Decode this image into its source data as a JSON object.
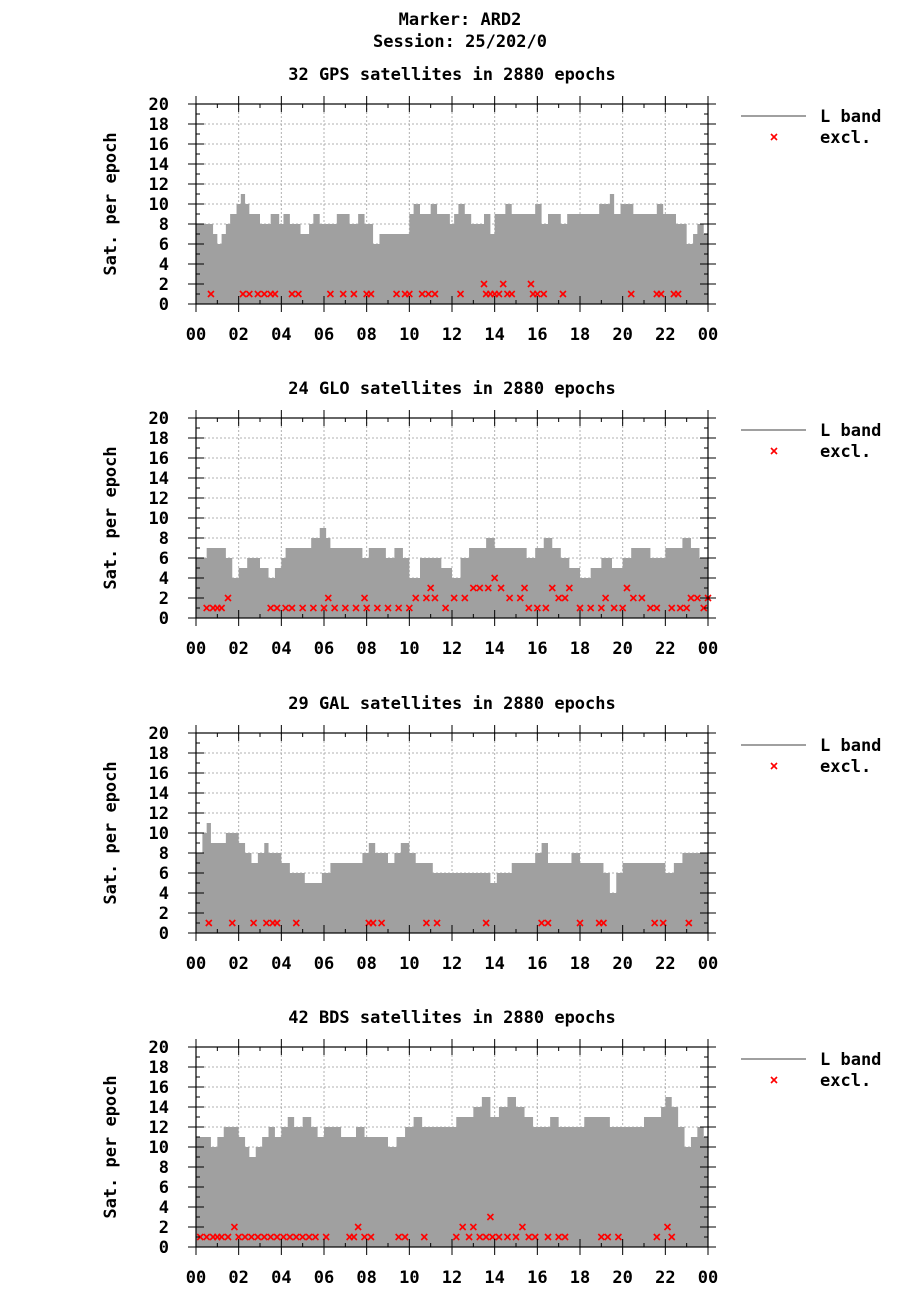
{
  "header": {
    "marker_line": "Marker: ARD2",
    "session_line": "Session: 25/202/0"
  },
  "legend": {
    "band_label": "L band",
    "excl_label": "excl."
  },
  "colors": {
    "band": "#a0a0a0",
    "excl": "#ff0000",
    "grid": "#b0b0b0"
  },
  "chart_data": [
    {
      "type": "area",
      "title": "32 GPS satellites in 2880 epochs",
      "ylabel": "Sat. per epoch",
      "xlabel": "",
      "ylim": [
        0,
        20
      ],
      "xlim": [
        0,
        24
      ],
      "x_ticks": [
        "00",
        "02",
        "04",
        "06",
        "08",
        "10",
        "12",
        "14",
        "16",
        "18",
        "20",
        "22",
        "00"
      ],
      "y_ticks": [
        0,
        2,
        4,
        6,
        8,
        10,
        12,
        14,
        16,
        18,
        20
      ],
      "grid": true,
      "legend_position": "right",
      "series": [
        {
          "name": "L band",
          "x": [
            0,
            0.7,
            0.8,
            1.0,
            1.2,
            1.4,
            1.6,
            1.9,
            2.1,
            2.3,
            2.5,
            2.7,
            3.0,
            3.3,
            3.5,
            3.7,
            3.9,
            4.1,
            4.4,
            4.6,
            4.9,
            5.1,
            5.3,
            5.5,
            5.8,
            6.0,
            6.3,
            6.6,
            6.9,
            7.2,
            7.4,
            7.6,
            7.9,
            8.1,
            8.3,
            8.6,
            8.9,
            9.2,
            9.5,
            9.8,
            10.0,
            10.2,
            10.5,
            10.8,
            11.0,
            11.3,
            11.6,
            11.9,
            12.1,
            12.3,
            12.6,
            12.9,
            13.2,
            13.5,
            13.8,
            14.0,
            14.2,
            14.5,
            14.8,
            15.1,
            15.4,
            15.7,
            15.9,
            16.2,
            16.5,
            16.8,
            17.1,
            17.4,
            17.7,
            18.0,
            18.3,
            18.6,
            18.9,
            19.1,
            19.4,
            19.6,
            19.9,
            20.2,
            20.5,
            20.8,
            21.1,
            21.4,
            21.6,
            21.9,
            22.2,
            22.5,
            22.8,
            23.0,
            23.3,
            23.5,
            23.8,
            24.0
          ],
          "values": [
            8,
            8,
            7,
            6,
            7,
            8,
            9,
            10,
            11,
            10,
            9,
            9,
            8,
            8,
            9,
            9,
            8,
            9,
            8,
            8,
            7,
            7,
            8,
            9,
            8,
            8,
            8,
            9,
            9,
            8,
            8,
            9,
            8,
            8,
            6,
            7,
            7,
            7,
            7,
            7,
            9,
            10,
            9,
            9,
            10,
            9,
            9,
            8,
            9,
            10,
            9,
            8,
            8,
            9,
            7,
            9,
            9,
            10,
            9,
            9,
            9,
            9,
            10,
            8,
            9,
            9,
            8,
            9,
            9,
            9,
            9,
            9,
            10,
            10,
            11,
            9,
            10,
            10,
            9,
            9,
            9,
            9,
            10,
            9,
            9,
            8,
            8,
            6,
            7,
            8,
            7,
            7
          ]
        },
        {
          "name": "excl.",
          "x": [
            0.7,
            2.2,
            2.5,
            2.9,
            3.2,
            3.5,
            3.7,
            4.5,
            4.8,
            6.3,
            6.9,
            7.4,
            8.0,
            8.2,
            9.4,
            9.8,
            10.0,
            10.6,
            10.9,
            11.2,
            12.4,
            13.5,
            13.6,
            13.8,
            14.0,
            14.2,
            14.4,
            14.6,
            14.8,
            15.7,
            15.8,
            16.0,
            16.3,
            17.2,
            20.4,
            21.6,
            21.8,
            22.4,
            22.6
          ],
          "values": [
            1,
            1,
            1,
            1,
            1,
            1,
            1,
            1,
            1,
            1,
            1,
            1,
            1,
            1,
            1,
            1,
            1,
            1,
            1,
            1,
            1,
            2,
            1,
            1,
            1,
            1,
            2,
            1,
            1,
            2,
            1,
            1,
            1,
            1,
            1,
            1,
            1,
            1,
            1
          ]
        }
      ]
    },
    {
      "type": "area",
      "title": "24 GLO satellites in 2880 epochs",
      "ylabel": "Sat. per epoch",
      "xlabel": "",
      "ylim": [
        0,
        20
      ],
      "xlim": [
        0,
        24
      ],
      "x_ticks": [
        "00",
        "02",
        "04",
        "06",
        "08",
        "10",
        "12",
        "14",
        "16",
        "18",
        "20",
        "22",
        "00"
      ],
      "y_ticks": [
        0,
        2,
        4,
        6,
        8,
        10,
        12,
        14,
        16,
        18,
        20
      ],
      "grid": true,
      "legend_position": "right",
      "series": [
        {
          "name": "L band",
          "x": [
            0,
            0.5,
            1.0,
            1.4,
            1.7,
            2.0,
            2.4,
            2.7,
            3.0,
            3.4,
            3.7,
            4.0,
            4.2,
            4.6,
            5.0,
            5.4,
            5.8,
            6.1,
            6.3,
            6.6,
            7.0,
            7.4,
            7.8,
            8.1,
            8.5,
            8.9,
            9.3,
            9.7,
            10.0,
            10.5,
            11.0,
            11.5,
            12.0,
            12.4,
            12.8,
            13.2,
            13.6,
            14.0,
            14.5,
            15.0,
            15.5,
            15.9,
            16.3,
            16.7,
            17.1,
            17.5,
            18.0,
            18.5,
            19.0,
            19.5,
            20.0,
            20.4,
            20.9,
            21.3,
            21.7,
            22.0,
            22.4,
            22.8,
            23.2,
            23.6,
            24.0
          ],
          "values": [
            6,
            7,
            7,
            6,
            4,
            5,
            6,
            6,
            5,
            4,
            5,
            6,
            7,
            7,
            7,
            8,
            9,
            8,
            7,
            7,
            7,
            7,
            6,
            7,
            7,
            6,
            7,
            6,
            4,
            6,
            6,
            5,
            4,
            6,
            7,
            7,
            8,
            7,
            7,
            7,
            6,
            7,
            8,
            7,
            6,
            5,
            4,
            5,
            6,
            5,
            6,
            7,
            7,
            6,
            6,
            7,
            7,
            8,
            7,
            6,
            6
          ]
        },
        {
          "name": "excl.",
          "x": [
            0.5,
            0.8,
            1.0,
            1.2,
            1.5,
            3.5,
            3.8,
            4.2,
            4.5,
            5.0,
            5.5,
            6.0,
            6.2,
            6.5,
            7.0,
            7.5,
            7.9,
            8.0,
            8.5,
            9.0,
            9.5,
            10.0,
            10.3,
            10.8,
            11.0,
            11.2,
            11.7,
            12.1,
            12.6,
            13.0,
            13.3,
            13.7,
            14.0,
            14.3,
            14.7,
            15.2,
            15.4,
            15.6,
            16.0,
            16.4,
            16.7,
            17.0,
            17.3,
            17.5,
            18.0,
            18.5,
            19.0,
            19.2,
            19.6,
            20.0,
            20.2,
            20.5,
            20.9,
            21.3,
            21.6,
            22.3,
            22.7,
            23.0,
            23.2,
            23.5,
            23.8,
            24.0
          ],
          "values": [
            1,
            1,
            1,
            1,
            2,
            1,
            1,
            1,
            1,
            1,
            1,
            1,
            2,
            1,
            1,
            1,
            2,
            1,
            1,
            1,
            1,
            1,
            2,
            2,
            3,
            2,
            1,
            2,
            2,
            3,
            3,
            3,
            4,
            3,
            2,
            2,
            3,
            1,
            1,
            1,
            3,
            2,
            2,
            3,
            1,
            1,
            1,
            2,
            1,
            1,
            3,
            2,
            2,
            1,
            1,
            1,
            1,
            1,
            2,
            2,
            1,
            2
          ]
        }
      ]
    },
    {
      "type": "area",
      "title": "29 GAL satellites in 2880 epochs",
      "ylabel": "Sat. per epoch",
      "xlabel": "",
      "ylim": [
        0,
        20
      ],
      "xlim": [
        0,
        24
      ],
      "x_ticks": [
        "00",
        "02",
        "04",
        "06",
        "08",
        "10",
        "12",
        "14",
        "16",
        "18",
        "20",
        "22",
        "00"
      ],
      "y_ticks": [
        0,
        2,
        4,
        6,
        8,
        10,
        12,
        14,
        16,
        18,
        20
      ],
      "grid": true,
      "legend_position": "right",
      "series": [
        {
          "name": "L band",
          "x": [
            0,
            0.3,
            0.5,
            0.7,
            1.0,
            1.4,
            1.6,
            2.0,
            2.3,
            2.6,
            2.9,
            3.2,
            3.4,
            3.7,
            4.0,
            4.4,
            4.8,
            5.1,
            5.5,
            5.9,
            6.3,
            6.8,
            7.3,
            7.8,
            8.1,
            8.4,
            8.7,
            9.0,
            9.3,
            9.6,
            10.0,
            10.3,
            10.7,
            11.1,
            11.5,
            12.0,
            12.5,
            13.0,
            13.4,
            13.8,
            14.1,
            14.4,
            14.8,
            15.2,
            15.6,
            15.9,
            16.2,
            16.5,
            16.8,
            17.2,
            17.6,
            18.0,
            18.4,
            18.8,
            19.1,
            19.4,
            19.7,
            20.0,
            20.5,
            21.0,
            21.5,
            22.0,
            22.4,
            22.8,
            23.2,
            23.6,
            24.0
          ],
          "values": [
            8,
            10,
            11,
            9,
            9,
            10,
            10,
            9,
            8,
            7,
            8,
            9,
            8,
            8,
            7,
            6,
            6,
            5,
            5,
            6,
            7,
            7,
            7,
            8,
            9,
            8,
            8,
            7,
            8,
            9,
            8,
            7,
            7,
            6,
            6,
            6,
            6,
            6,
            6,
            5,
            6,
            6,
            7,
            7,
            7,
            8,
            9,
            7,
            7,
            7,
            8,
            7,
            7,
            7,
            6,
            4,
            6,
            7,
            7,
            7,
            7,
            6,
            7,
            8,
            8,
            8,
            9
          ]
        },
        {
          "name": "excl.",
          "x": [
            0.6,
            1.7,
            2.7,
            3.3,
            3.6,
            3.8,
            4.7,
            8.1,
            8.3,
            8.7,
            10.8,
            11.3,
            13.6,
            16.2,
            16.5,
            18.0,
            18.9,
            19.1,
            21.5,
            21.9,
            23.1
          ],
          "values": [
            1,
            1,
            1,
            1,
            1,
            1,
            1,
            1,
            1,
            1,
            1,
            1,
            1,
            1,
            1,
            1,
            1,
            1,
            1,
            1,
            1
          ]
        }
      ]
    },
    {
      "type": "area",
      "title": "42 BDS satellites in 2880 epochs",
      "ylabel": "Sat. per epoch",
      "xlabel": "",
      "ylim": [
        0,
        20
      ],
      "xlim": [
        0,
        24
      ],
      "x_ticks": [
        "00",
        "02",
        "04",
        "06",
        "08",
        "10",
        "12",
        "14",
        "16",
        "18",
        "20",
        "22",
        "00"
      ],
      "y_ticks": [
        0,
        2,
        4,
        6,
        8,
        10,
        12,
        14,
        16,
        18,
        20
      ],
      "grid": true,
      "legend_position": "right",
      "series": [
        {
          "name": "L band",
          "x": [
            0,
            0.4,
            0.7,
            1.0,
            1.3,
            1.6,
            2.0,
            2.3,
            2.5,
            2.8,
            3.1,
            3.4,
            3.7,
            4.0,
            4.3,
            4.6,
            5.0,
            5.4,
            5.7,
            6.0,
            6.4,
            6.8,
            7.1,
            7.5,
            7.9,
            8.2,
            8.6,
            9.0,
            9.4,
            9.8,
            10.2,
            10.6,
            11.0,
            11.4,
            11.8,
            12.2,
            12.6,
            13.0,
            13.4,
            13.8,
            14.2,
            14.6,
            15.0,
            15.4,
            15.8,
            16.2,
            16.6,
            17.0,
            17.4,
            17.8,
            18.2,
            18.6,
            19.0,
            19.4,
            19.8,
            20.2,
            20.6,
            21.0,
            21.4,
            21.8,
            22.0,
            22.3,
            22.6,
            22.9,
            23.2,
            23.5,
            23.8,
            24.0
          ],
          "values": [
            11,
            11,
            10,
            11,
            12,
            12,
            11,
            10,
            9,
            10,
            11,
            12,
            11,
            12,
            13,
            12,
            13,
            12,
            11,
            12,
            12,
            11,
            11,
            12,
            11,
            11,
            11,
            10,
            11,
            12,
            13,
            12,
            12,
            12,
            12,
            13,
            13,
            14,
            15,
            13,
            14,
            15,
            14,
            13,
            12,
            12,
            13,
            12,
            12,
            12,
            13,
            13,
            13,
            12,
            12,
            12,
            12,
            13,
            13,
            14,
            15,
            14,
            12,
            10,
            11,
            12,
            11,
            12
          ]
        },
        {
          "name": "excl.",
          "x": [
            0.2,
            0.5,
            0.8,
            1.0,
            1.2,
            1.5,
            1.8,
            2.0,
            2.3,
            2.6,
            2.9,
            3.2,
            3.5,
            3.8,
            4.1,
            4.4,
            4.7,
            5.0,
            5.3,
            5.6,
            6.1,
            7.2,
            7.4,
            7.6,
            7.9,
            8.2,
            9.5,
            9.8,
            10.7,
            12.2,
            12.5,
            12.8,
            13.0,
            13.3,
            13.6,
            13.8,
            13.9,
            14.2,
            14.6,
            15.0,
            15.3,
            15.6,
            15.9,
            16.5,
            17.0,
            17.3,
            19.0,
            19.3,
            19.8,
            21.6,
            22.1,
            22.3
          ],
          "values": [
            1,
            1,
            1,
            1,
            1,
            1,
            2,
            1,
            1,
            1,
            1,
            1,
            1,
            1,
            1,
            1,
            1,
            1,
            1,
            1,
            1,
            1,
            1,
            2,
            1,
            1,
            1,
            1,
            1,
            1,
            2,
            1,
            2,
            1,
            1,
            3,
            1,
            1,
            1,
            1,
            2,
            1,
            1,
            1,
            1,
            1,
            1,
            1,
            1,
            1,
            2,
            1
          ]
        }
      ]
    }
  ]
}
